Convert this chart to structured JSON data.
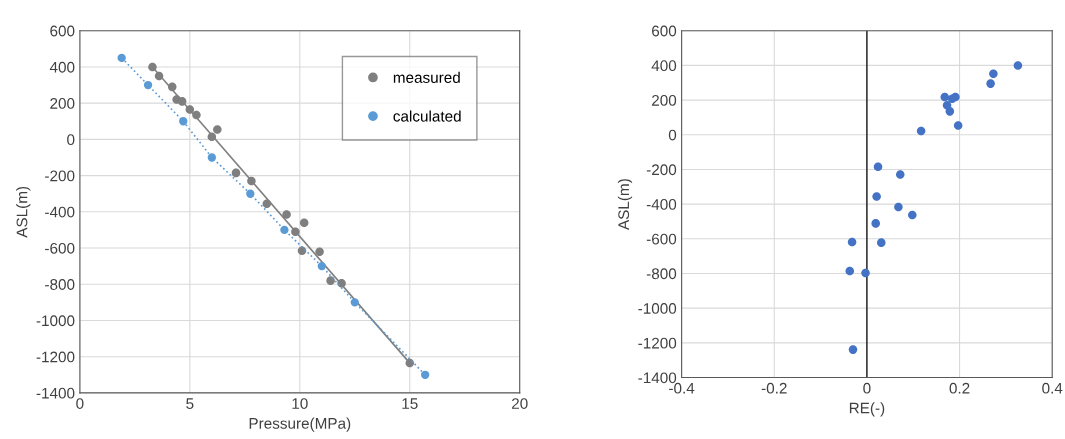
{
  "chart_data": [
    {
      "type": "scatter",
      "xlabel": "Pressure(MPa)",
      "ylabel": "ASL(m)",
      "xlim": [
        0,
        20
      ],
      "xticks": [
        0,
        5,
        10,
        15,
        20
      ],
      "ylim": [
        -1400,
        600
      ],
      "yticks": [
        -1400,
        -1200,
        -1000,
        -800,
        -600,
        -400,
        -200,
        0,
        200,
        400,
        600
      ],
      "grid": true,
      "legend": "top right",
      "series": [
        {
          "name": "measured",
          "color": "#7f7f7f",
          "marker": "circle",
          "x": [
            3.3,
            3.6,
            4.2,
            4.4,
            4.65,
            5.0,
            5.3,
            6.0,
            6.25,
            7.1,
            7.8,
            8.5,
            9.4,
            9.8,
            10.2,
            10.1,
            10.9,
            11.4,
            11.9,
            15.0
          ],
          "values": [
            400,
            350,
            290,
            220,
            210,
            165,
            135,
            15,
            55,
            -185,
            -230,
            -355,
            -415,
            -510,
            -460,
            -615,
            -620,
            -780,
            -795,
            -1235
          ]
        },
        {
          "type": "line",
          "color": "#7f7f7f",
          "marker": "none",
          "line_style": "solid",
          "x": [
            3.3,
            15.0
          ],
          "values": [
            400,
            -1235
          ]
        },
        {
          "name": "calculated",
          "type": "line",
          "color": "#5b9bd5",
          "marker": "circle",
          "line_style": "dotted",
          "x": [
            1.9,
            3.1,
            4.7,
            6.0,
            7.75,
            9.3,
            11.0,
            12.5,
            15.7
          ],
          "values": [
            450,
            300,
            100,
            -100,
            -300,
            -500,
            -700,
            -900,
            -1300
          ]
        }
      ]
    },
    {
      "type": "scatter",
      "xlabel": "RE(-)",
      "ylabel": "ASL(m)",
      "xlim": [
        -0.4,
        0.4
      ],
      "xticks": [
        -0.4,
        -0.2,
        0,
        0.2,
        0.4
      ],
      "ylim": [
        -1400,
        600
      ],
      "yticks": [
        -1400,
        -1200,
        -1000,
        -800,
        -600,
        -400,
        -200,
        0,
        200,
        400,
        600
      ],
      "grid": true,
      "marker": "circle",
      "ref_lines": [
        {
          "axis": "x",
          "value": 0,
          "color": "#000000"
        }
      ],
      "series": [
        {
          "color": "#4472c4",
          "x": [
            0.326,
            0.273,
            0.267,
            0.168,
            0.191,
            0.184,
            0.173,
            0.179,
            0.197,
            0.117,
            0.024,
            0.072,
            0.021,
            0.068,
            0.098,
            0.019,
            -0.032,
            0.031,
            -0.037,
            -0.003,
            -0.03
          ],
          "values": [
            400,
            352,
            295,
            218,
            218,
            208,
            170,
            135,
            53,
            22,
            -184,
            -229,
            -356,
            -417,
            -463,
            -511,
            -618,
            -622,
            -786,
            -797,
            -1239
          ]
        }
      ]
    }
  ]
}
